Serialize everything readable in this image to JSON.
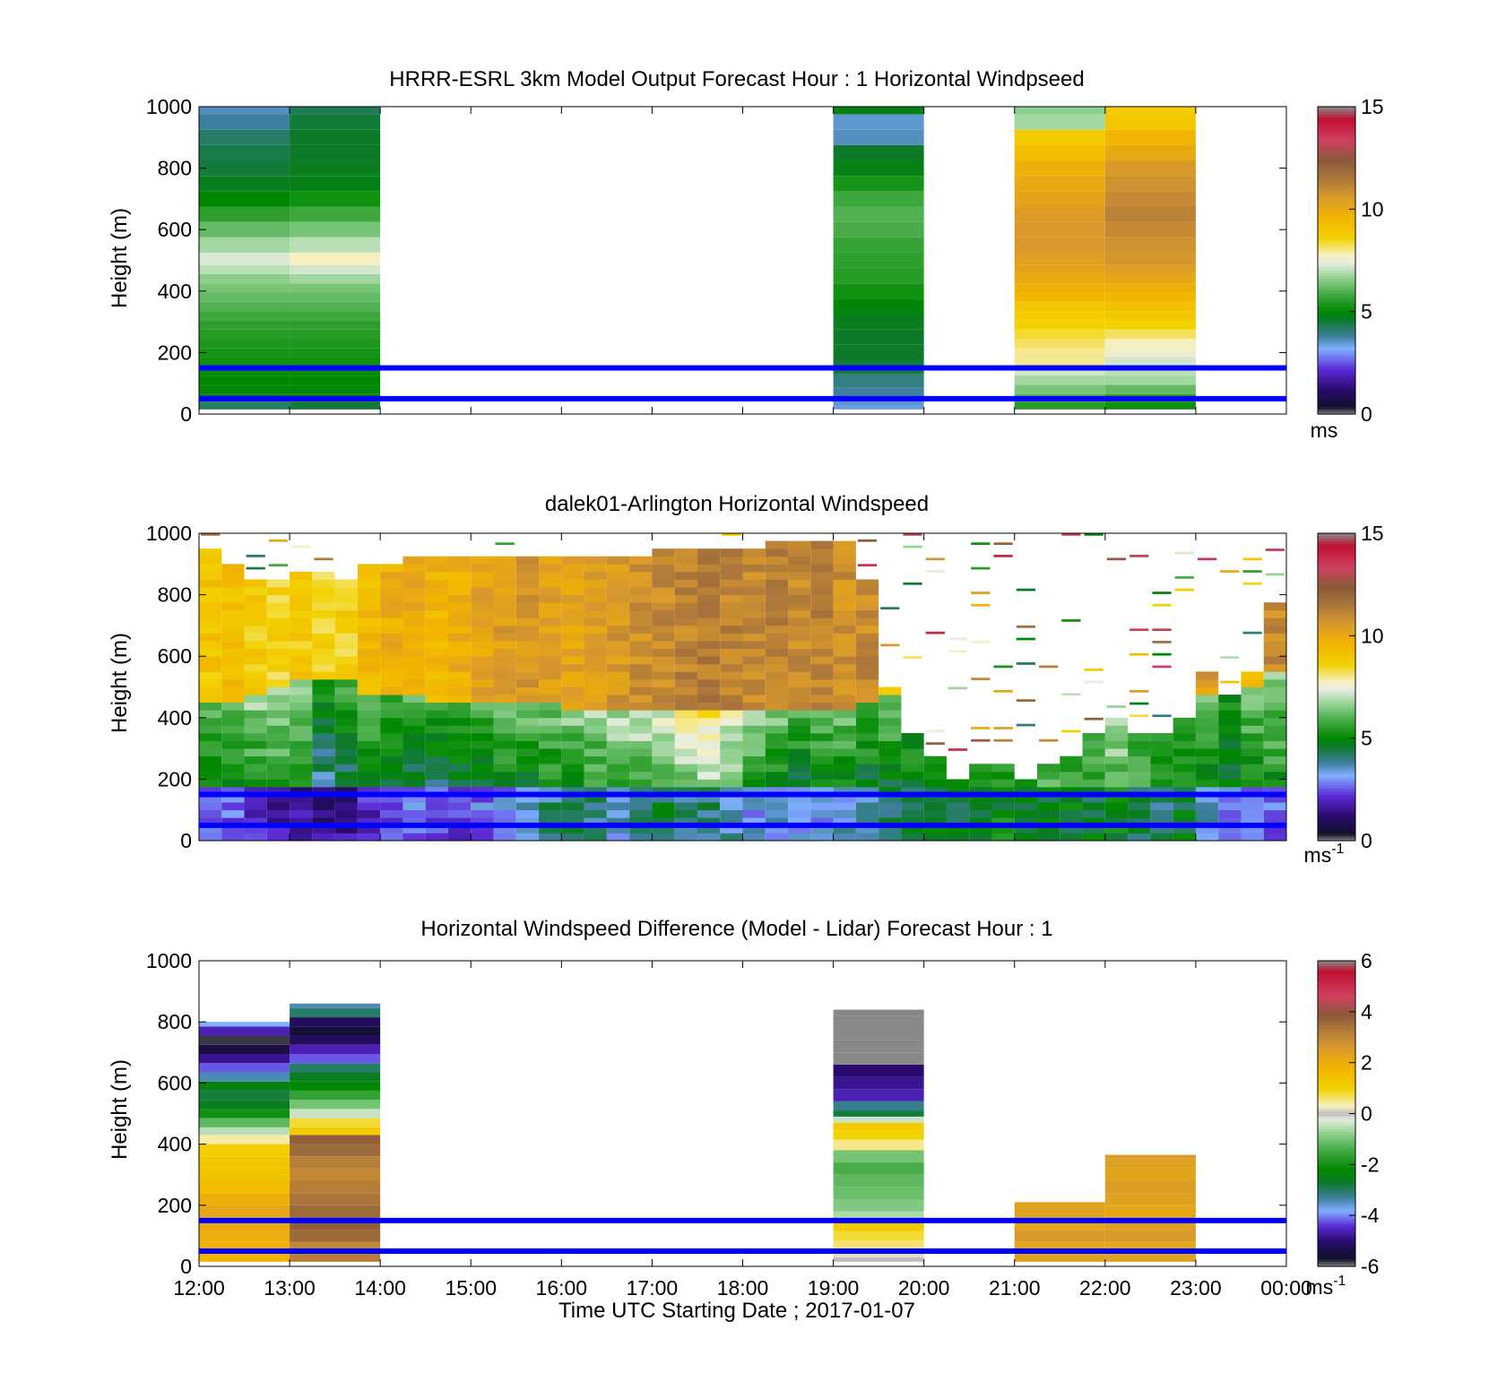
{
  "figure": {
    "xlabel": "Time UTC  Starting Date ; 2017-01-07",
    "x_ticks": [
      "12:00",
      "13:00",
      "14:00",
      "15:00",
      "16:00",
      "17:00",
      "18:00",
      "19:00",
      "20:00",
      "21:00",
      "22:00",
      "23:00",
      "00:00"
    ],
    "reference_lines_m": [
      150,
      50
    ],
    "reference_line_color": "#0000ff"
  },
  "chart_data": [
    {
      "type": "heatmap",
      "title": "HRRR-ESRL 3km Model Output   Forecast Hour : 1 Horizontal Windpseed",
      "ylabel": "Height (m)",
      "ylim": [
        0,
        1000
      ],
      "y_ticks": [
        "0",
        "200",
        "400",
        "600",
        "800",
        "1000"
      ],
      "clim": [
        0,
        15
      ],
      "colorbar_ticks": [
        "0",
        "5",
        "10",
        "15"
      ],
      "colorbar_unit": "ms",
      "colorbar_unit_sup": "",
      "x_hours": [
        0,
        1,
        2,
        3,
        4,
        5,
        6,
        7,
        8,
        9,
        10,
        11,
        12
      ],
      "columns": [
        {
          "hour": 0,
          "levels_m": [
            30,
            50,
            80,
            110,
            140,
            170,
            200,
            230,
            260,
            290,
            320,
            350,
            380,
            410,
            440,
            470,
            500,
            550,
            600,
            650,
            700,
            750,
            800,
            850,
            900,
            950,
            1000
          ],
          "values": [
            4.2,
            4.8,
            4.9,
            5.0,
            5.1,
            5.2,
            5.3,
            5.4,
            5.5,
            5.6,
            5.8,
            6.0,
            6.2,
            6.4,
            6.6,
            7.0,
            7.3,
            6.8,
            6.2,
            5.6,
            5.0,
            4.7,
            4.5,
            4.4,
            4.2,
            3.8,
            3.6
          ]
        },
        {
          "hour": 1,
          "levels_m": [
            30,
            50,
            80,
            110,
            140,
            170,
            200,
            230,
            260,
            290,
            320,
            350,
            380,
            410,
            440,
            470,
            500,
            550,
            600,
            650,
            700,
            750,
            800,
            850,
            900,
            950,
            1000
          ],
          "values": [
            4.5,
            4.9,
            4.9,
            5.0,
            5.1,
            5.2,
            5.3,
            5.4,
            5.5,
            5.6,
            5.8,
            6.0,
            6.2,
            6.4,
            6.8,
            7.2,
            7.8,
            7.0,
            6.4,
            5.8,
            5.2,
            4.8,
            4.7,
            4.6,
            4.6,
            4.5,
            4.3
          ]
        },
        {
          "hour": 7,
          "levels_m": [
            20,
            35,
            60,
            110,
            150,
            200,
            250,
            300,
            350,
            400,
            450,
            500,
            550,
            600,
            650,
            700,
            750,
            800,
            850,
            900,
            950,
            1000
          ],
          "values": [
            3.4,
            3.5,
            3.8,
            4.0,
            4.5,
            4.6,
            4.6,
            4.7,
            4.9,
            5.2,
            5.5,
            5.6,
            5.7,
            5.9,
            6.0,
            5.8,
            5.3,
            4.8,
            4.6,
            3.6,
            3.5,
            4.8
          ]
        },
        {
          "hour": 9,
          "levels_m": [
            30,
            50,
            80,
            110,
            140,
            170,
            200,
            230,
            260,
            290,
            320,
            350,
            380,
            410,
            440,
            470,
            500,
            550,
            600,
            650,
            700,
            750,
            800,
            850,
            900,
            950,
            1000
          ],
          "values": [
            5.5,
            6.0,
            6.4,
            6.8,
            7.2,
            8.0,
            8.0,
            8.2,
            8.4,
            8.6,
            8.8,
            9.0,
            9.5,
            9.8,
            10.0,
            10.2,
            10.4,
            10.6,
            10.6,
            10.5,
            10.2,
            10.0,
            9.8,
            9.2,
            8.8,
            6.8,
            6.6
          ]
        },
        {
          "hour": 10,
          "levels_m": [
            30,
            50,
            80,
            110,
            140,
            170,
            200,
            230,
            260,
            290,
            320,
            350,
            380,
            410,
            440,
            470,
            500,
            550,
            600,
            650,
            700,
            750,
            800,
            850,
            900,
            950,
            1000
          ],
          "values": [
            5.2,
            5.6,
            6.2,
            6.8,
            7.0,
            7.2,
            7.6,
            7.8,
            8.2,
            8.6,
            8.9,
            9.2,
            9.5,
            9.8,
            10.1,
            10.4,
            10.7,
            10.8,
            11.0,
            11.2,
            11.0,
            10.8,
            10.6,
            10.0,
            9.6,
            9.0,
            8.8
          ]
        }
      ]
    },
    {
      "type": "heatmap",
      "title": "dalek01-Arlington  Horizontal Windspeed",
      "ylabel": "Height (m)",
      "ylim": [
        0,
        1000
      ],
      "y_ticks": [
        "0",
        "200",
        "400",
        "600",
        "800",
        "1000"
      ],
      "clim": [
        0,
        15
      ],
      "colorbar_ticks": [
        "0",
        "5",
        "10",
        "15"
      ],
      "colorbar_unit": "ms",
      "colorbar_unit_sup": "-1",
      "x_start_hour": 0,
      "x_step_hour": 0.25,
      "levels_m": [
        25,
        50,
        75,
        100,
        125,
        150,
        175,
        200,
        225,
        250,
        275,
        300,
        325,
        350,
        375,
        400,
        425,
        450,
        475,
        500,
        525,
        550,
        575,
        600,
        625,
        650,
        675,
        700,
        725,
        750,
        775,
        800,
        825,
        850,
        875,
        900,
        925,
        950,
        975,
        1000
      ],
      "profiles_by_time": [
        {
          "t": 0.0,
          "top_m": 960,
          "v_low": 2.8,
          "v_mid": 4.8,
          "v_high": 9.0,
          "jet_m": 460
        },
        {
          "t": 0.25,
          "top_m": 900,
          "v_low": 2.6,
          "v_mid": 5.0,
          "v_high": 9.2,
          "jet_m": 470
        },
        {
          "t": 0.5,
          "top_m": 850,
          "v_low": 2.2,
          "v_mid": 5.2,
          "v_high": 8.8,
          "jet_m": 480
        },
        {
          "t": 0.75,
          "top_m": 860,
          "v_low": 1.8,
          "v_mid": 5.6,
          "v_high": 8.6,
          "jet_m": 520
        },
        {
          "t": 1.0,
          "top_m": 880,
          "v_low": 1.6,
          "v_mid": 5.0,
          "v_high": 8.8,
          "jet_m": 540
        },
        {
          "t": 1.25,
          "top_m": 880,
          "v_low": 1.4,
          "v_mid": 3.8,
          "v_high": 8.6,
          "jet_m": 550
        },
        {
          "t": 1.5,
          "top_m": 870,
          "v_low": 1.6,
          "v_mid": 4.2,
          "v_high": 8.6,
          "jet_m": 530
        },
        {
          "t": 1.75,
          "top_m": 900,
          "v_low": 2.0,
          "v_mid": 4.8,
          "v_high": 9.4,
          "jet_m": 500
        },
        {
          "t": 2.0,
          "top_m": 920,
          "v_low": 2.6,
          "v_mid": 4.6,
          "v_high": 9.8,
          "jet_m": 490
        },
        {
          "t": 2.25,
          "top_m": 930,
          "v_low": 2.8,
          "v_mid": 4.4,
          "v_high": 10.0,
          "jet_m": 480
        },
        {
          "t": 2.5,
          "top_m": 930,
          "v_low": 2.4,
          "v_mid": 4.2,
          "v_high": 9.6,
          "jet_m": 470
        },
        {
          "t": 2.75,
          "top_m": 930,
          "v_low": 2.2,
          "v_mid": 4.4,
          "v_high": 9.8,
          "jet_m": 470
        },
        {
          "t": 3.0,
          "top_m": 930,
          "v_low": 2.8,
          "v_mid": 4.6,
          "v_high": 10.2,
          "jet_m": 460
        },
        {
          "t": 3.25,
          "top_m": 930,
          "v_low": 3.0,
          "v_mid": 4.8,
          "v_high": 10.4,
          "jet_m": 460
        },
        {
          "t": 3.5,
          "top_m": 930,
          "v_low": 3.6,
          "v_mid": 4.8,
          "v_high": 10.6,
          "jet_m": 460
        },
        {
          "t": 3.75,
          "top_m": 930,
          "v_low": 4.0,
          "v_mid": 5.0,
          "v_high": 10.4,
          "jet_m": 460
        },
        {
          "t": 4.0,
          "top_m": 940,
          "v_low": 4.2,
          "v_mid": 5.2,
          "v_high": 10.2,
          "jet_m": 450
        },
        {
          "t": 4.25,
          "top_m": 940,
          "v_low": 4.0,
          "v_mid": 5.4,
          "v_high": 10.4,
          "jet_m": 450
        },
        {
          "t": 4.5,
          "top_m": 940,
          "v_low": 3.4,
          "v_mid": 5.6,
          "v_high": 10.6,
          "jet_m": 450
        },
        {
          "t": 4.75,
          "top_m": 940,
          "v_low": 4.2,
          "v_mid": 5.8,
          "v_high": 10.8,
          "jet_m": 450
        },
        {
          "t": 5.0,
          "top_m": 950,
          "v_low": 4.4,
          "v_mid": 6.0,
          "v_high": 11.0,
          "jet_m": 450
        },
        {
          "t": 5.25,
          "top_m": 950,
          "v_low": 4.0,
          "v_mid": 6.4,
          "v_high": 11.2,
          "jet_m": 450
        },
        {
          "t": 5.5,
          "top_m": 960,
          "v_low": 4.2,
          "v_mid": 6.6,
          "v_high": 11.4,
          "jet_m": 450
        },
        {
          "t": 5.75,
          "top_m": 960,
          "v_low": 3.6,
          "v_mid": 6.2,
          "v_high": 11.2,
          "jet_m": 450
        },
        {
          "t": 6.0,
          "top_m": 970,
          "v_low": 3.2,
          "v_mid": 5.4,
          "v_high": 11.0,
          "jet_m": 450
        },
        {
          "t": 6.25,
          "top_m": 980,
          "v_low": 3.4,
          "v_mid": 5.0,
          "v_high": 11.2,
          "jet_m": 450
        },
        {
          "t": 6.5,
          "top_m": 980,
          "v_low": 3.0,
          "v_mid": 4.6,
          "v_high": 11.0,
          "jet_m": 450
        },
        {
          "t": 6.75,
          "top_m": 980,
          "v_low": 3.2,
          "v_mid": 4.8,
          "v_high": 11.2,
          "jet_m": 450
        },
        {
          "t": 7.0,
          "top_m": 980,
          "v_low": 3.4,
          "v_mid": 5.0,
          "v_high": 10.8,
          "jet_m": 450
        },
        {
          "t": 7.25,
          "top_m": 860,
          "v_low": 3.8,
          "v_mid": 4.6,
          "v_high": 11.0,
          "jet_m": 470
        },
        {
          "t": 7.5,
          "top_m": 520,
          "v_low": 4.4,
          "v_mid": 4.8,
          "v_high": 9.0,
          "jet_m": 480
        },
        {
          "t": 7.75,
          "top_m": 360,
          "v_low": 4.6,
          "v_mid": 5.0,
          "v_high": 5.0,
          "jet_m": 999
        },
        {
          "t": 8.0,
          "top_m": 280,
          "v_low": 4.8,
          "v_mid": 5.0,
          "v_high": 5.0,
          "jet_m": 999
        },
        {
          "t": 8.25,
          "top_m": 220,
          "v_low": 4.6,
          "v_mid": 4.8,
          "v_high": 4.8,
          "jet_m": 999
        },
        {
          "t": 8.5,
          "top_m": 250,
          "v_low": 4.8,
          "v_mid": 5.4,
          "v_high": 5.4,
          "jet_m": 999
        },
        {
          "t": 8.75,
          "top_m": 250,
          "v_low": 5.0,
          "v_mid": 5.6,
          "v_high": 5.6,
          "jet_m": 999
        },
        {
          "t": 9.0,
          "top_m": 220,
          "v_low": 4.8,
          "v_mid": 5.2,
          "v_high": 5.2,
          "jet_m": 999
        },
        {
          "t": 9.25,
          "top_m": 250,
          "v_low": 4.6,
          "v_mid": 5.8,
          "v_high": 5.8,
          "jet_m": 999
        },
        {
          "t": 9.5,
          "top_m": 280,
          "v_low": 4.8,
          "v_mid": 5.6,
          "v_high": 5.6,
          "jet_m": 999
        },
        {
          "t": 9.75,
          "top_m": 360,
          "v_low": 4.6,
          "v_mid": 5.8,
          "v_high": 5.8,
          "jet_m": 999
        },
        {
          "t": 10.0,
          "top_m": 400,
          "v_low": 5.0,
          "v_mid": 6.2,
          "v_high": 6.2,
          "jet_m": 999
        },
        {
          "t": 10.25,
          "top_m": 370,
          "v_low": 4.4,
          "v_mid": 5.6,
          "v_high": 5.6,
          "jet_m": 999
        },
        {
          "t": 10.5,
          "top_m": 370,
          "v_low": 4.2,
          "v_mid": 5.0,
          "v_high": 5.0,
          "jet_m": 999
        },
        {
          "t": 10.75,
          "top_m": 420,
          "v_low": 4.6,
          "v_mid": 5.2,
          "v_high": 6.0,
          "jet_m": 999
        },
        {
          "t": 11.0,
          "top_m": 560,
          "v_low": 3.6,
          "v_mid": 5.0,
          "v_high": 10.4,
          "jet_m": 500
        },
        {
          "t": 11.25,
          "top_m": 480,
          "v_low": 3.0,
          "v_mid": 4.8,
          "v_high": 6.0,
          "jet_m": 999
        },
        {
          "t": 11.5,
          "top_m": 560,
          "v_low": 2.6,
          "v_mid": 5.0,
          "v_high": 9.6,
          "jet_m": 520
        },
        {
          "t": 11.75,
          "top_m": 790,
          "v_low": 2.8,
          "v_mid": 5.2,
          "v_high": 11.0,
          "jet_m": 560
        }
      ],
      "scattered_returns_above": true
    },
    {
      "type": "heatmap",
      "title": "Horizontal Windspeed Difference (Model - Lidar) Forecast Hour : 1",
      "ylabel": "Height (m)",
      "ylim": [
        0,
        1000
      ],
      "y_ticks": [
        "0",
        "200",
        "400",
        "600",
        "800",
        "1000"
      ],
      "clim": [
        -6,
        6
      ],
      "colorbar_ticks": [
        "-6",
        "-4",
        "-2",
        "0",
        "2",
        "4",
        "6"
      ],
      "colorbar_unit": "ms",
      "colorbar_unit_sup": "-1",
      "x_hours": [
        0,
        1,
        2,
        3,
        4,
        5,
        6,
        7,
        8,
        9,
        10,
        11,
        12
      ],
      "columns": [
        {
          "hour": 0,
          "levels_m": [
            30,
            60,
            100,
            140,
            180,
            220,
            260,
            300,
            340,
            380,
            420,
            440,
            470,
            500,
            530,
            560,
            590,
            620,
            650,
            680,
            710,
            740,
            770,
            800
          ],
          "values": [
            1.8,
            1.9,
            2.0,
            2.1,
            2.2,
            2.0,
            1.6,
            1.4,
            1.3,
            1.1,
            0.4,
            -0.5,
            -1.2,
            -2.0,
            -2.6,
            -2.8,
            -2.4,
            -3.4,
            -4.2,
            -4.8,
            -5.4,
            -5.8,
            -4.6,
            -3.8
          ]
        },
        {
          "hour": 1,
          "levels_m": [
            30,
            60,
            100,
            140,
            180,
            220,
            260,
            300,
            340,
            380,
            420,
            440,
            470,
            500,
            530,
            560,
            590,
            620,
            650,
            680,
            710,
            740,
            770,
            800,
            830,
            860
          ],
          "values": [
            3.2,
            3.0,
            3.6,
            3.8,
            3.6,
            3.4,
            3.2,
            3.0,
            3.2,
            3.6,
            3.8,
            1.2,
            0.8,
            -0.4,
            -1.0,
            -1.6,
            -2.2,
            -2.6,
            -3.0,
            -4.2,
            -4.6,
            -5.2,
            -5.6,
            -5.2,
            -3.0,
            -3.4
          ]
        },
        {
          "hour": 7,
          "levels_m": [
            20,
            40,
            70,
            100,
            130,
            160,
            200,
            240,
            280,
            320,
            360,
            400,
            430,
            460,
            480,
            500,
            520,
            560,
            600,
            640,
            680,
            720,
            760,
            800,
            840
          ],
          "values": [
            0.0,
            0.2,
            0.6,
            0.8,
            1.2,
            -0.6,
            -0.9,
            -1.1,
            -1.2,
            -1.4,
            -1.0,
            0.5,
            1.0,
            1.2,
            -0.4,
            -2.8,
            -3.2,
            -4.6,
            -4.8,
            -5.0,
            6.2,
            6.2,
            6.2,
            6.2,
            6.2
          ]
        },
        {
          "hour": 9,
          "levels_m": [
            30,
            60,
            100,
            140,
            180,
            210
          ],
          "values": [
            2.4,
            2.2,
            2.6,
            2.2,
            2.4,
            2.3
          ]
        },
        {
          "hour": 10,
          "levels_m": [
            30,
            60,
            100,
            140,
            180,
            220,
            260,
            300,
            340,
            365
          ],
          "values": [
            2.4,
            2.2,
            2.6,
            2.4,
            2.2,
            2.4,
            2.5,
            2.3,
            2.4,
            2.6
          ]
        }
      ]
    }
  ]
}
